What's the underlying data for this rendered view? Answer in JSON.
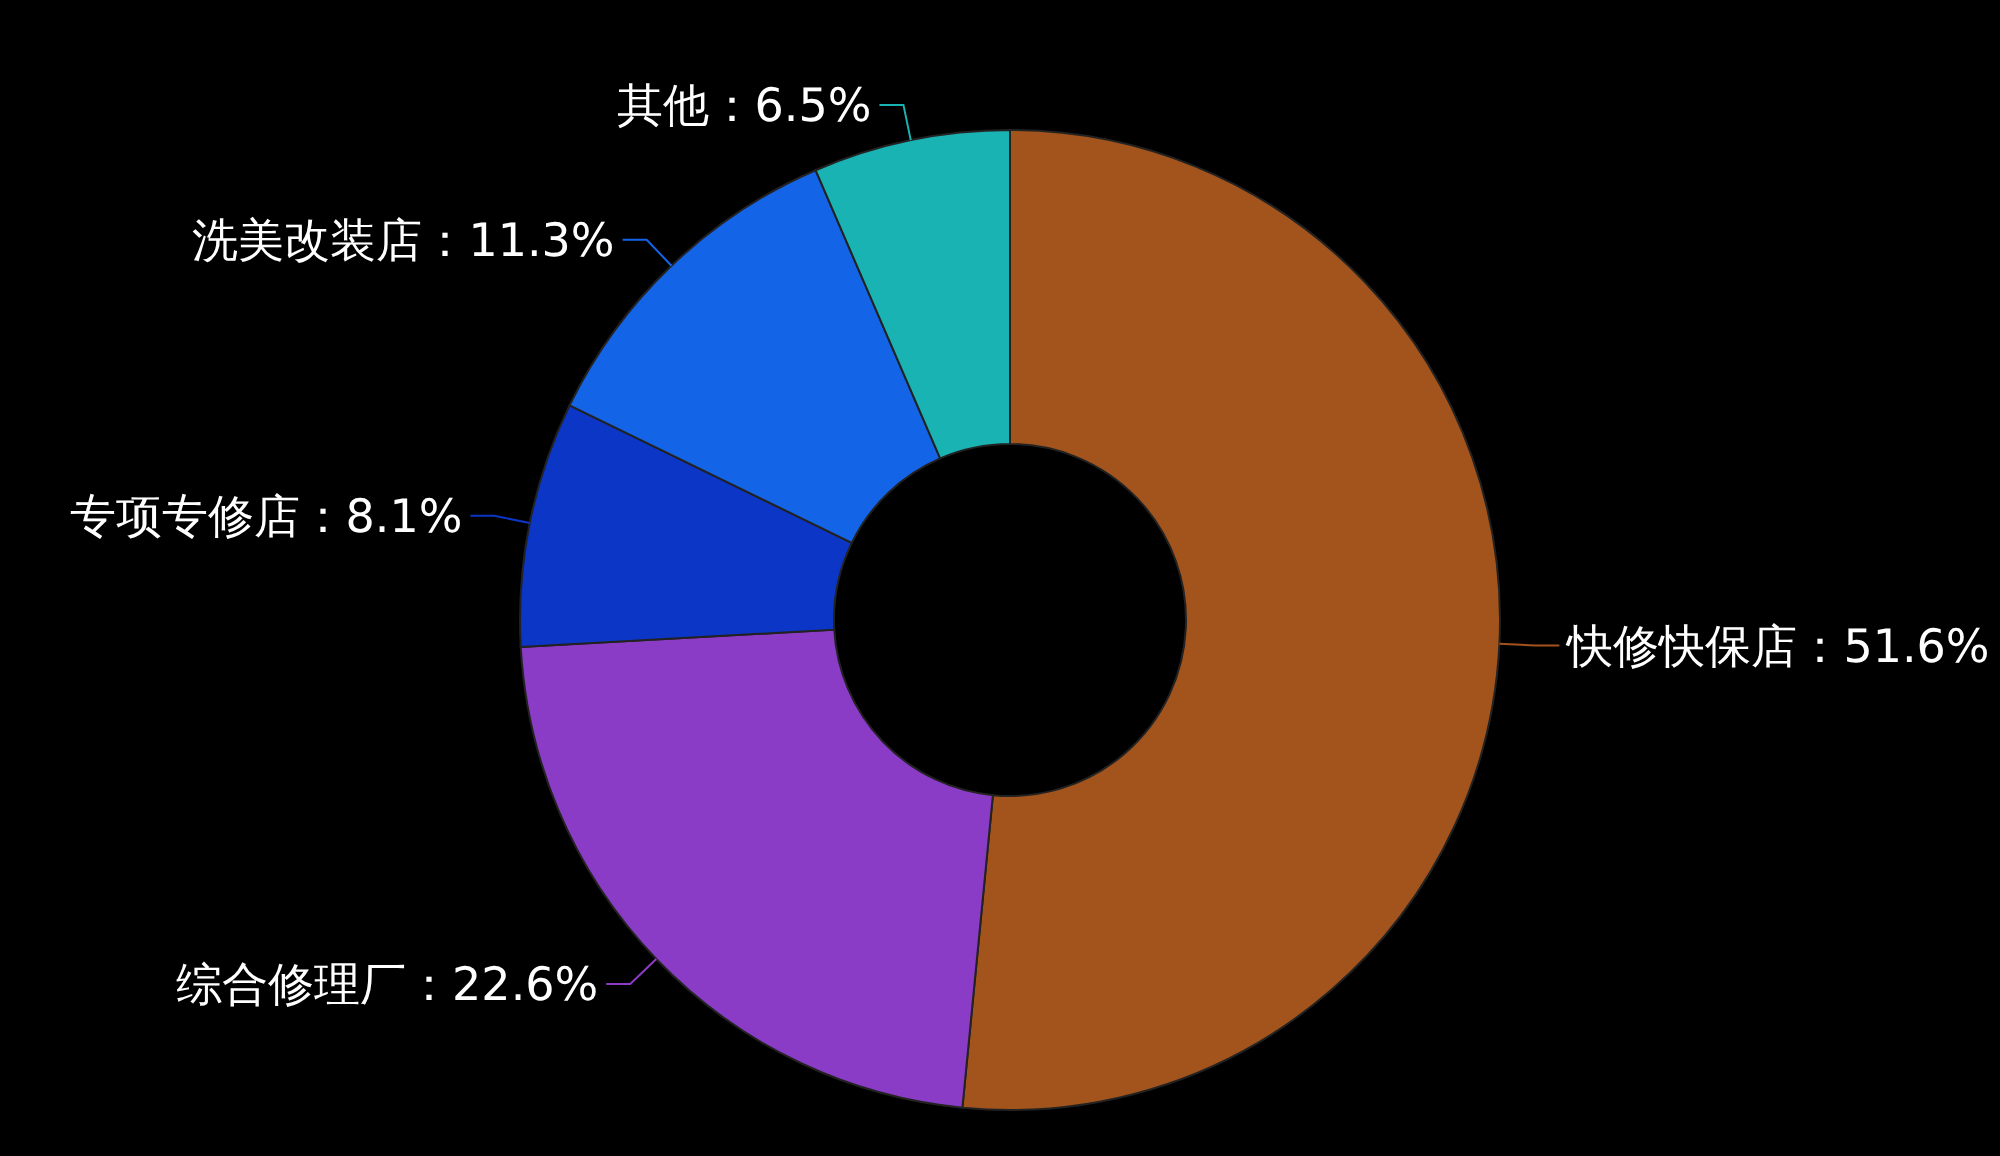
{
  "chart_data": {
    "type": "donut",
    "categories": [
      "快修快保店",
      "综合修理厂",
      "专项专修店",
      "洗美改装店",
      "其他"
    ],
    "values": [
      51.6,
      22.6,
      8.1,
      11.3,
      6.5
    ],
    "value_labels": [
      "51.6%",
      "22.6%",
      "8.1%",
      "11.3%",
      "6.5%"
    ],
    "colors": [
      "#a3541c",
      "#8b3cc6",
      "#0b36c6",
      "#1464e8",
      "#19b3b3"
    ],
    "legend": false
  }
}
